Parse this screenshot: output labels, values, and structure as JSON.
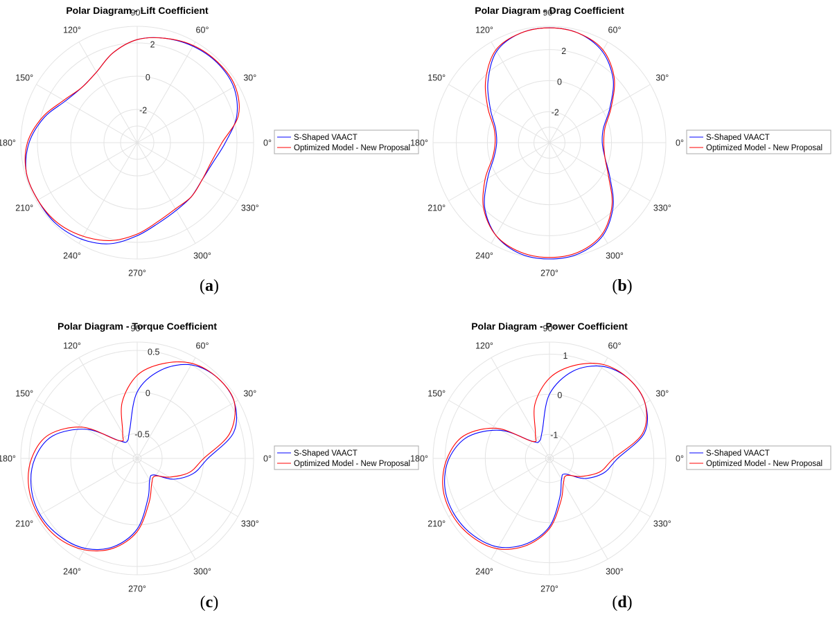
{
  "colors": {
    "series1": "#0000ff",
    "series2": "#ff0000",
    "grid": "#e3e3e3",
    "text": "#262626"
  },
  "chart_data": [
    {
      "type": "polar-line",
      "panel_label": "a",
      "title": "Polar Diagram - Lift Coefficient",
      "angle_labels": [
        "0°",
        "30°",
        "60°",
        "90°",
        "120°",
        "150°",
        "180°",
        "210°",
        "240°",
        "270°",
        "300°",
        "330°"
      ],
      "radial_ticks": [
        -2,
        0,
        2
      ],
      "rlim": [
        -4,
        3
      ],
      "legend": {
        "placement": "outside-right",
        "entries": [
          "S-Shaped VAACT",
          "Optimized Model - New Proposal"
        ]
      },
      "series": [
        {
          "name": "S-Shaped VAACT",
          "angle_deg": [
            0,
            15,
            30,
            45,
            60,
            75,
            90,
            105,
            120,
            135,
            150,
            165,
            180,
            195,
            210,
            225,
            240,
            255,
            270,
            285,
            300,
            315,
            330,
            345
          ],
          "r": [
            1.3,
            2.2,
            2.7,
            2.8,
            2.7,
            2.5,
            2.2,
            1.6,
            0.9,
            0.7,
            1.0,
            1.8,
            2.5,
            2.9,
            2.9,
            2.9,
            2.7,
            2.3,
            1.6,
            1.0,
            0.7,
            0.6,
            0.5,
            0.7
          ]
        },
        {
          "name": "Optimized Model - New Proposal",
          "angle_deg": [
            0,
            15,
            30,
            45,
            60,
            75,
            90,
            105,
            120,
            135,
            150,
            165,
            180,
            195,
            210,
            225,
            240,
            255,
            270,
            285,
            300,
            315,
            330,
            345
          ],
          "r": [
            1.1,
            2.3,
            2.8,
            2.85,
            2.75,
            2.5,
            2.2,
            1.6,
            0.9,
            0.7,
            1.1,
            1.9,
            2.6,
            2.9,
            2.9,
            2.8,
            2.5,
            2.1,
            1.5,
            0.9,
            0.6,
            0.6,
            0.5,
            0.6
          ]
        }
      ]
    },
    {
      "type": "polar-line",
      "panel_label": "b",
      "title": "Polar Diagram - Drag Coefficient",
      "angle_labels": [
        "0°",
        "30°",
        "60°",
        "90°",
        "120°",
        "150°",
        "180°",
        "210°",
        "240°",
        "270°",
        "300°",
        "330°"
      ],
      "radial_ticks": [
        -2,
        0,
        2
      ],
      "rlim": [
        -4,
        3.5
      ],
      "legend": {
        "placement": "outside-right",
        "entries": [
          "S-Shaped VAACT",
          "Optimized Model - New Proposal"
        ]
      },
      "series": [
        {
          "name": "S-Shaped VAACT",
          "angle_deg": [
            0,
            15,
            30,
            45,
            60,
            75,
            90,
            105,
            120,
            135,
            150,
            165,
            180,
            195,
            210,
            225,
            240,
            255,
            270,
            285,
            300,
            315,
            330,
            345
          ],
          "r": [
            -0.6,
            -0.4,
            0.5,
            1.8,
            2.8,
            3.3,
            3.4,
            3.3,
            2.8,
            1.6,
            0.4,
            -0.4,
            -0.6,
            -0.3,
            0.6,
            1.9,
            2.9,
            3.4,
            3.5,
            3.4,
            2.9,
            1.8,
            0.5,
            -0.3
          ]
        },
        {
          "name": "Optimized Model - New Proposal",
          "angle_deg": [
            0,
            15,
            30,
            45,
            60,
            75,
            90,
            105,
            120,
            135,
            150,
            165,
            180,
            195,
            210,
            225,
            240,
            255,
            270,
            285,
            300,
            315,
            330,
            345
          ],
          "r": [
            -0.5,
            -0.3,
            0.6,
            1.9,
            2.9,
            3.3,
            3.4,
            3.3,
            2.9,
            1.8,
            0.6,
            -0.3,
            -0.5,
            -0.2,
            0.8,
            2.0,
            2.9,
            3.3,
            3.4,
            3.3,
            2.8,
            1.7,
            0.4,
            -0.3
          ]
        }
      ]
    },
    {
      "type": "polar-line",
      "panel_label": "c",
      "title": "Polar Diagram - Torque Coefficient",
      "angle_labels": [
        "0°",
        "30°",
        "60°",
        "90°",
        "120°",
        "150°",
        "180°",
        "210°",
        "240°",
        "270°",
        "300°",
        "330°"
      ],
      "radial_ticks": [
        -0.5,
        0,
        0.5
      ],
      "rlim": [
        -0.8,
        0.6
      ],
      "legend": {
        "placement": "outside-right",
        "entries": [
          "S-Shaped VAACT",
          "Optimized Model - New Proposal"
        ]
      },
      "series": [
        {
          "name": "S-Shaped VAACT",
          "angle_deg": [
            0,
            15,
            30,
            45,
            60,
            75,
            90,
            105,
            120,
            135,
            150,
            165,
            180,
            195,
            210,
            225,
            240,
            255,
            270,
            285,
            300,
            315,
            330,
            345
          ],
          "r": [
            0.05,
            0.4,
            0.55,
            0.57,
            0.5,
            0.3,
            0.0,
            -0.45,
            -0.56,
            -0.5,
            -0.1,
            0.25,
            0.43,
            0.52,
            0.55,
            0.52,
            0.45,
            0.3,
            0.05,
            -0.3,
            -0.5,
            -0.52,
            -0.3,
            -0.1
          ]
        },
        {
          "name": "Optimized Model - New Proposal",
          "angle_deg": [
            0,
            15,
            30,
            45,
            60,
            75,
            90,
            105,
            120,
            135,
            150,
            165,
            180,
            195,
            210,
            225,
            240,
            255,
            270,
            285,
            300,
            315,
            330,
            345
          ],
          "r": [
            0.0,
            0.35,
            0.55,
            0.57,
            0.52,
            0.38,
            0.2,
            -0.1,
            -0.45,
            -0.5,
            -0.05,
            0.3,
            0.47,
            0.55,
            0.57,
            0.55,
            0.47,
            0.32,
            0.08,
            -0.25,
            -0.45,
            -0.5,
            -0.35,
            -0.15
          ]
        }
      ]
    },
    {
      "type": "polar-line",
      "panel_label": "d",
      "title": "Polar Diagram - Power Coefficient",
      "angle_labels": [
        "0°",
        "30°",
        "60°",
        "90°",
        "120°",
        "150°",
        "180°",
        "210°",
        "240°",
        "270°",
        "300°",
        "330°"
      ],
      "radial_ticks": [
        -1,
        0,
        1
      ],
      "rlim": [
        -1.6,
        1.3
      ],
      "legend": {
        "placement": "outside-right",
        "entries": [
          "S-Shaped VAACT",
          "Optimized Model - New Proposal"
        ]
      },
      "series": [
        {
          "name": "S-Shaped VAACT",
          "angle_deg": [
            0,
            15,
            30,
            45,
            60,
            75,
            90,
            105,
            120,
            135,
            150,
            165,
            180,
            195,
            210,
            225,
            240,
            255,
            270,
            285,
            300,
            315,
            330,
            345
          ],
          "r": [
            0.1,
            0.85,
            1.15,
            1.2,
            1.05,
            0.65,
            0.0,
            -0.9,
            -1.1,
            -1.0,
            -0.2,
            0.5,
            0.9,
            1.1,
            1.15,
            1.1,
            0.95,
            0.6,
            0.1,
            -0.6,
            -1.0,
            -1.05,
            -0.6,
            -0.2
          ]
        },
        {
          "name": "Optimized Model - New Proposal",
          "angle_deg": [
            0,
            15,
            30,
            45,
            60,
            75,
            90,
            105,
            120,
            135,
            150,
            165,
            180,
            195,
            210,
            225,
            240,
            255,
            270,
            285,
            300,
            315,
            330,
            345
          ],
          "r": [
            0.0,
            0.8,
            1.15,
            1.2,
            1.1,
            0.8,
            0.4,
            -0.2,
            -0.9,
            -1.0,
            -0.1,
            0.6,
            0.95,
            1.15,
            1.2,
            1.15,
            1.0,
            0.65,
            0.15,
            -0.5,
            -0.9,
            -1.0,
            -0.7,
            -0.3
          ]
        }
      ]
    }
  ]
}
